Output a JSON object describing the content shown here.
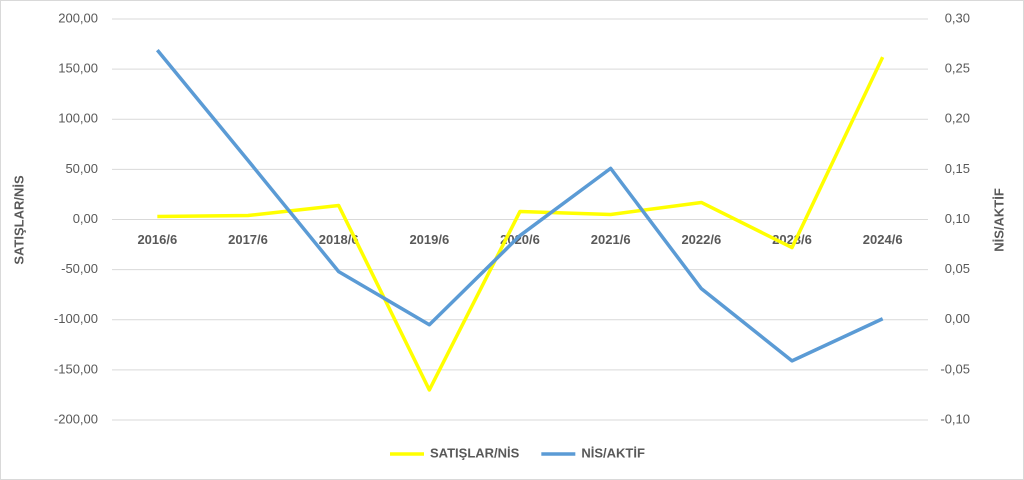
{
  "chart_data": {
    "type": "line",
    "categories": [
      "2016/6",
      "2017/6",
      "2018/6",
      "2019/6",
      "2020/6",
      "2021/6",
      "2022/6",
      "2023/6",
      "2024/6"
    ],
    "ylabel": "SATIŞLAR/NİS",
    "y2label": "NİS/AKTİF",
    "series": [
      {
        "name": "SATIŞLAR/NİS",
        "color": "#ffff00",
        "values": [
          3,
          4,
          14,
          -170,
          8,
          5,
          17,
          -28,
          162
        ]
      },
      {
        "name": "NİS/AKTİF",
        "color": "#5b9bd5",
        "axis": "y2",
        "values": [
          0.269,
          0.159,
          0.048,
          -0.005,
          0.084,
          0.151,
          0.031,
          -0.041,
          0.001
        ]
      }
    ],
    "ylim": [
      -200,
      200
    ],
    "yticks": [
      {
        "value": -200,
        "label": "-200,00"
      },
      {
        "value": -150,
        "label": "-150,00"
      },
      {
        "value": -100,
        "label": "-100,00"
      },
      {
        "value": -50,
        "label": "-50,00"
      },
      {
        "value": 0,
        "label": "0,00"
      },
      {
        "value": 50,
        "label": "50,00"
      },
      {
        "value": 100,
        "label": "100,00"
      },
      {
        "value": 150,
        "label": "150,00"
      },
      {
        "value": 200,
        "label": "200,00"
      }
    ],
    "y2lim": [
      -0.1,
      0.3
    ],
    "y2ticks": [
      {
        "value": -0.1,
        "label": "-0,10"
      },
      {
        "value": -0.05,
        "label": "-0,05"
      },
      {
        "value": 0,
        "label": "0,00"
      },
      {
        "value": 0.05,
        "label": "0,05"
      },
      {
        "value": 0.1,
        "label": "0,10"
      },
      {
        "value": 0.15,
        "label": "0,15"
      },
      {
        "value": 0.2,
        "label": "0,20"
      },
      {
        "value": 0.25,
        "label": "0,25"
      },
      {
        "value": 0.3,
        "label": "0,30"
      }
    ],
    "grid": true,
    "legend": "bottom"
  }
}
